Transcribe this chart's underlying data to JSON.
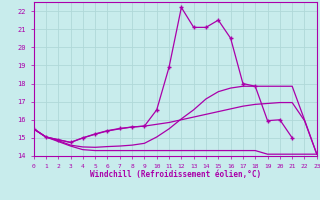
{
  "xlabel": "Windchill (Refroidissement éolien,°C)",
  "background_color": "#c8ecec",
  "grid_color": "#b0d8d8",
  "line_color": "#aa00aa",
  "xlim": [
    0,
    23
  ],
  "ylim": [
    14,
    22.5
  ],
  "xticks": [
    0,
    1,
    2,
    3,
    4,
    5,
    6,
    7,
    8,
    9,
    10,
    11,
    12,
    13,
    14,
    15,
    16,
    17,
    18,
    19,
    20,
    21,
    22,
    23
  ],
  "yticks": [
    14,
    15,
    16,
    17,
    18,
    19,
    20,
    21,
    22
  ],
  "figsize": [
    3.2,
    2.0
  ],
  "dpi": 100,
  "lines": [
    {
      "x": [
        0,
        1,
        2,
        3,
        4,
        5,
        6,
        7,
        8,
        9,
        10,
        11,
        12,
        13,
        14,
        15,
        16,
        17,
        18,
        19,
        20,
        21,
        22,
        23
      ],
      "y": [
        15.5,
        15.05,
        14.8,
        14.55,
        14.35,
        14.3,
        14.3,
        14.3,
        14.3,
        14.3,
        14.3,
        14.3,
        14.3,
        14.3,
        14.3,
        14.3,
        14.3,
        14.3,
        14.3,
        14.1,
        14.1,
        14.1,
        14.1,
        14.1
      ],
      "marker": false
    },
    {
      "x": [
        0,
        1,
        2,
        3,
        4,
        5,
        6,
        7,
        8,
        9,
        10,
        11,
        12,
        13,
        14,
        15,
        16,
        17,
        18,
        19,
        20,
        21,
        22,
        23
      ],
      "y": [
        15.5,
        15.05,
        14.85,
        14.6,
        14.5,
        14.48,
        14.52,
        14.55,
        14.6,
        14.7,
        15.05,
        15.5,
        16.05,
        16.55,
        17.15,
        17.55,
        17.75,
        17.85,
        17.85,
        17.85,
        17.85,
        17.85,
        16.0,
        14.1
      ],
      "marker": false
    },
    {
      "x": [
        0,
        1,
        2,
        3,
        4,
        5,
        6,
        7,
        8,
        9,
        10,
        11,
        12,
        13,
        14,
        15,
        16,
        17,
        18,
        19,
        20,
        21,
        22,
        23
      ],
      "y": [
        15.5,
        15.05,
        14.9,
        14.75,
        15.0,
        15.2,
        15.38,
        15.5,
        15.6,
        15.65,
        15.75,
        15.85,
        16.0,
        16.15,
        16.3,
        16.45,
        16.6,
        16.75,
        16.85,
        16.9,
        16.95,
        16.95,
        15.95,
        14.1
      ],
      "marker": false
    },
    {
      "x": [
        0,
        1,
        2,
        3,
        4,
        5,
        6,
        7,
        8,
        9,
        10,
        11,
        12,
        13,
        14,
        15,
        16,
        17,
        18,
        19,
        20,
        21
      ],
      "y": [
        15.5,
        15.05,
        14.9,
        14.75,
        15.0,
        15.22,
        15.4,
        15.52,
        15.6,
        15.65,
        16.55,
        18.9,
        22.2,
        21.1,
        21.1,
        21.5,
        20.5,
        18.0,
        17.85,
        15.95,
        16.0,
        15.0
      ],
      "marker": true
    }
  ]
}
